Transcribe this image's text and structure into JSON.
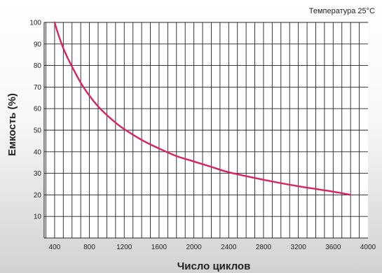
{
  "chart_data": {
    "type": "line",
    "annotation": "Температура 25°C",
    "xlabel": "Число циклов",
    "ylabel": "Емкость (%)",
    "xlim": [
      280,
      4000
    ],
    "ylim": [
      0,
      100
    ],
    "x_ticks": [
      400,
      800,
      1200,
      1600,
      2000,
      2400,
      2800,
      3200,
      3600,
      4000
    ],
    "y_ticks": [
      10,
      20,
      30,
      40,
      50,
      60,
      70,
      80,
      90,
      100
    ],
    "grid": true,
    "series": [
      {
        "color": "#d6245c",
        "x": [
          400,
          450,
          500,
          550,
          600,
          700,
          800,
          900,
          1000,
          1100,
          1200,
          1400,
          1600,
          1800,
          2000,
          2200,
          2400,
          2800,
          3200,
          3600,
          3800
        ],
        "y": [
          100,
          93.5,
          88,
          83.5,
          79.5,
          72,
          66,
          61,
          57,
          53.5,
          50.5,
          45.5,
          41.5,
          38,
          35.5,
          33,
          30.5,
          27,
          24,
          21.5,
          20
        ]
      }
    ]
  }
}
